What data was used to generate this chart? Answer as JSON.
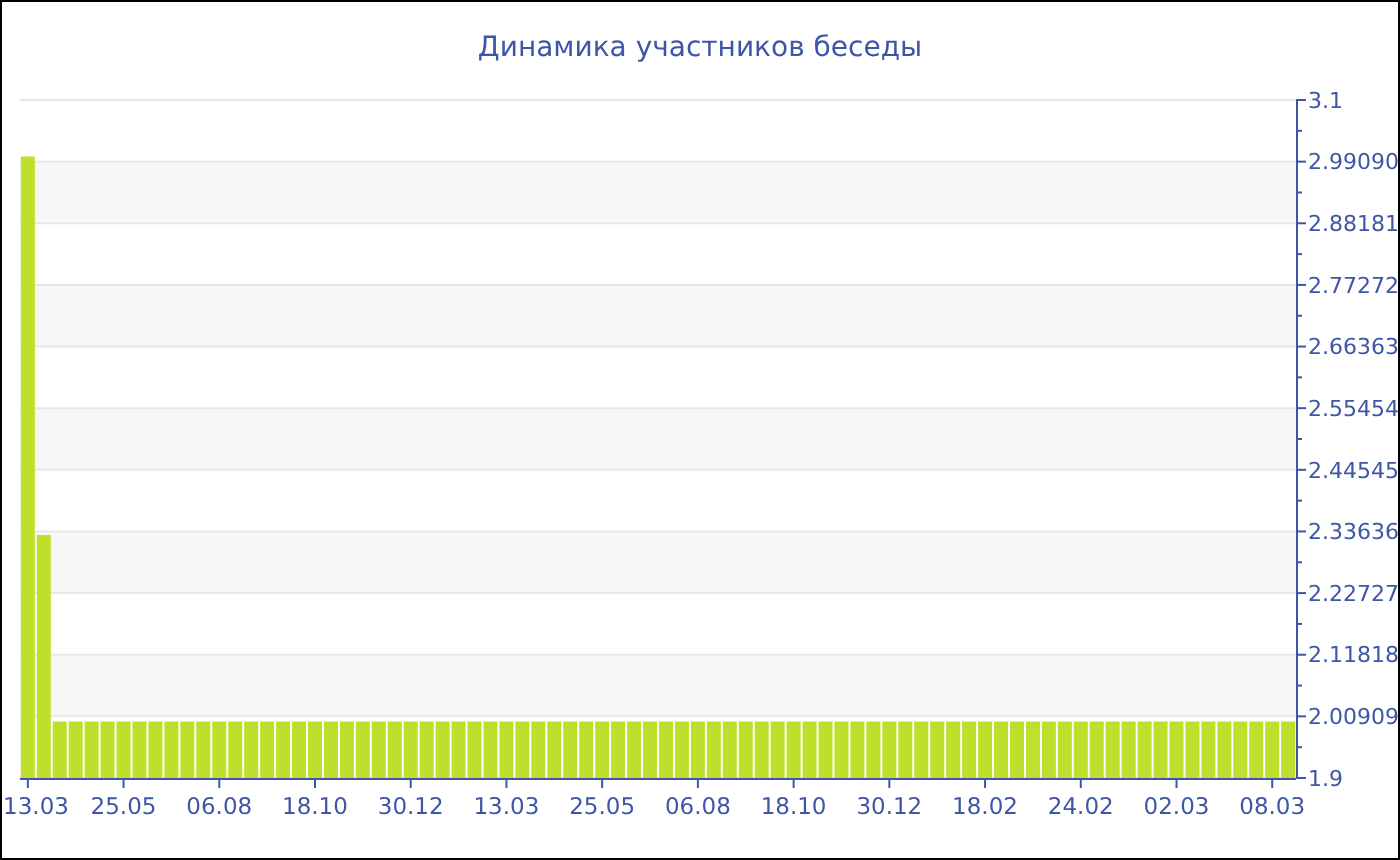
{
  "chart_data": {
    "type": "bar",
    "title": "Динамика участников беседы",
    "categories": [
      "13.03",
      null,
      null,
      null,
      null,
      null,
      "25.05",
      null,
      null,
      null,
      null,
      null,
      "06.08",
      null,
      null,
      null,
      null,
      null,
      "18.10",
      null,
      null,
      null,
      null,
      null,
      "30.12",
      null,
      null,
      null,
      null,
      null,
      "13.03",
      null,
      null,
      null,
      null,
      null,
      "25.05",
      null,
      null,
      null,
      null,
      null,
      "06.08",
      null,
      null,
      null,
      null,
      null,
      "18.10",
      null,
      null,
      null,
      null,
      null,
      "30.12",
      null,
      null,
      null,
      null,
      null,
      "18.02",
      null,
      null,
      null,
      null,
      null,
      "24.02",
      null,
      null,
      null,
      null,
      null,
      "02.03",
      null,
      null,
      null,
      null,
      null,
      "08.03",
      null
    ],
    "values": [
      3,
      2.33,
      2,
      2,
      2,
      2,
      2,
      2,
      2,
      2,
      2,
      2,
      2,
      2,
      2,
      2,
      2,
      2,
      2,
      2,
      2,
      2,
      2,
      2,
      2,
      2,
      2,
      2,
      2,
      2,
      2,
      2,
      2,
      2,
      2,
      2,
      2,
      2,
      2,
      2,
      2,
      2,
      2,
      2,
      2,
      2,
      2,
      2,
      2,
      2,
      2,
      2,
      2,
      2,
      2,
      2,
      2,
      2,
      2,
      2,
      2,
      2,
      2,
      2,
      2,
      2,
      2,
      2,
      2,
      2,
      2,
      2,
      2,
      2,
      2,
      2,
      2,
      2,
      2,
      2
    ],
    "color": "#bee02c",
    "ylim": [
      1.9,
      3.1
    ],
    "yticks": [
      1.9,
      2.00909,
      2.11818,
      2.22727,
      2.33636,
      2.44545,
      2.55454,
      2.66363,
      2.77272,
      2.88181,
      {
        "value": 2.9909,
        "label": "2.99090"
      },
      3.1
    ],
    "grid": "y"
  }
}
